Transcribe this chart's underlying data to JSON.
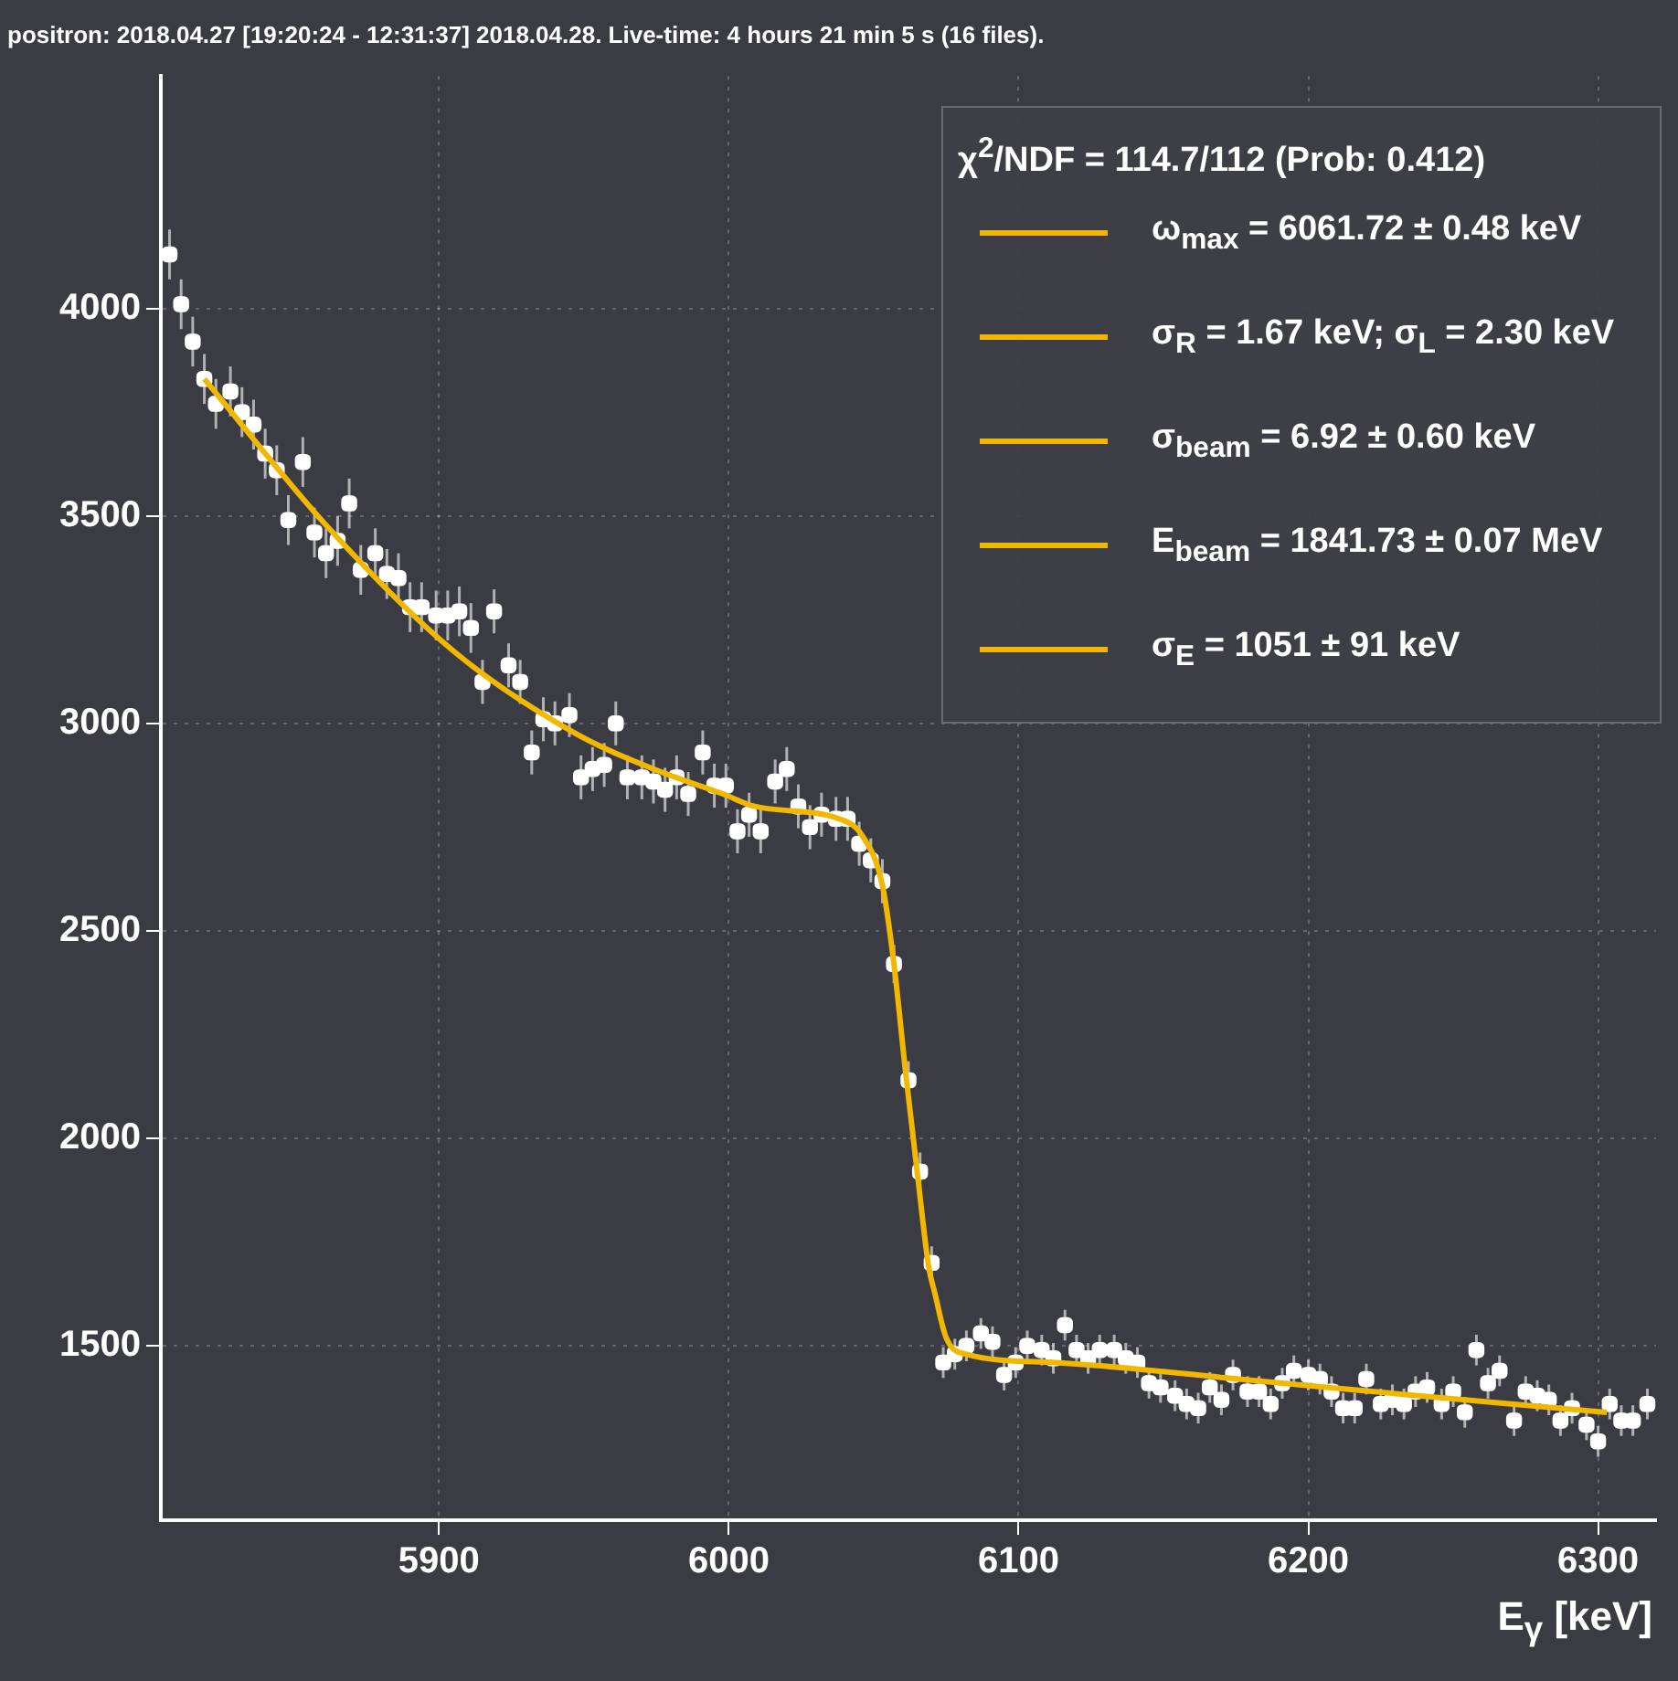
{
  "chart_data": {
    "type": "scatter",
    "title": "positron: 2018.04.27 [19:20:24 - 12:31:37] 2018.04.28. Live-time: 4 hours 21 min 5 s (16 files).",
    "xlabel": "E$_{γ}$ [keV]",
    "legend_title": "χ$^{2}$/NDF = 114.7/112  (Prob: 0.412)",
    "annotations": [
      "ω$_{max}$ =  6061.72 ± 0.48 keV",
      "σ$_{R}$ =  1.67 keV;  σ$_{L}$ =  2.30 keV",
      "σ$_{beam}$ =   6.92 ± 0.60 keV",
      "E$_{beam}$ =  1841.73 ± 0.07 MeV",
      "σ$_{E}$ = 1051 ±  91 keV"
    ],
    "xlim": [
      5804,
      6320
    ],
    "xticks": [
      5900,
      6000,
      6100,
      6200,
      6300
    ],
    "ylim": [
      1080,
      4560
    ],
    "yticks": [
      1500,
      2000,
      2500,
      3000,
      3500,
      4000
    ],
    "grid": true,
    "marker": "square",
    "series": [
      {
        "type": "scatter",
        "color": "#ffffff",
        "x": [
          5807,
          5811,
          5815,
          5819,
          5823,
          5828,
          5832,
          5836,
          5840,
          5844,
          5848,
          5853,
          5857,
          5861,
          5865,
          5869,
          5873,
          5878,
          5882,
          5886,
          5890,
          5894,
          5899,
          5903,
          5907,
          5911,
          5915,
          5919,
          5924,
          5928,
          5932,
          5936,
          5940,
          5945,
          5949,
          5953,
          5957,
          5961,
          5965,
          5970,
          5974,
          5978,
          5982,
          5986,
          5991,
          5995,
          5999,
          6003,
          6007,
          6011,
          6016,
          6020,
          6024,
          6028,
          6032,
          6037,
          6041,
          6045,
          6049,
          6053,
          6057,
          6062,
          6066,
          6070,
          6074,
          6078,
          6082,
          6087,
          6091,
          6095,
          6099,
          6103,
          6108,
          6112,
          6116,
          6120,
          6124,
          6128,
          6133,
          6137,
          6141,
          6145,
          6149,
          6154,
          6158,
          6162,
          6166,
          6170,
          6174,
          6179,
          6183,
          6187,
          6191,
          6195,
          6200,
          6204,
          6208,
          6212,
          6216,
          6220,
          6225,
          6229,
          6233,
          6237,
          6241,
          6246,
          6250,
          6254,
          6258,
          6262,
          6266,
          6271,
          6275,
          6279,
          6283,
          6287,
          6291,
          6296,
          6300,
          6304,
          6308,
          6312,
          6317
        ],
        "values": [
          4130,
          4010,
          3920,
          3830,
          3770,
          3800,
          3750,
          3720,
          3650,
          3610,
          3490,
          3630,
          3460,
          3410,
          3440,
          3530,
          3370,
          3410,
          3360,
          3350,
          3280,
          3280,
          3260,
          3260,
          3270,
          3230,
          3100,
          3270,
          3140,
          3100,
          2930,
          3010,
          3000,
          3020,
          2870,
          2890,
          2900,
          3000,
          2870,
          2870,
          2860,
          2840,
          2870,
          2830,
          2930,
          2850,
          2850,
          2740,
          2780,
          2740,
          2860,
          2890,
          2800,
          2750,
          2780,
          2770,
          2770,
          2710,
          2670,
          2620,
          2420,
          2140,
          1920,
          1700,
          1460,
          1480,
          1500,
          1530,
          1510,
          1430,
          1460,
          1500,
          1490,
          1470,
          1550,
          1490,
          1470,
          1490,
          1490,
          1470,
          1460,
          1410,
          1400,
          1380,
          1360,
          1350,
          1400,
          1370,
          1430,
          1390,
          1390,
          1360,
          1410,
          1440,
          1430,
          1420,
          1390,
          1350,
          1350,
          1420,
          1360,
          1370,
          1360,
          1390,
          1400,
          1360,
          1390,
          1340,
          1490,
          1410,
          1440,
          1320,
          1390,
          1380,
          1370,
          1320,
          1350,
          1310,
          1270,
          1360,
          1320,
          1320,
          1360
        ],
        "errors": [
          60,
          60,
          60,
          60,
          60,
          60,
          60,
          60,
          60,
          60,
          60,
          60,
          60,
          60,
          60,
          60,
          60,
          60,
          60,
          60,
          60,
          60,
          60,
          60,
          60,
          60,
          53,
          53,
          53,
          53,
          53,
          53,
          53,
          53,
          53,
          53,
          53,
          53,
          53,
          53,
          53,
          53,
          53,
          53,
          53,
          53,
          53,
          53,
          53,
          53,
          53,
          53,
          53,
          53,
          53,
          53,
          53,
          53,
          53,
          53,
          46,
          46,
          46,
          40,
          37,
          37,
          37,
          37,
          37,
          37,
          37,
          37,
          37,
          37,
          37,
          37,
          37,
          37,
          37,
          37,
          37,
          37,
          37,
          37,
          37,
          37,
          37,
          37,
          37,
          37,
          37,
          37,
          37,
          37,
          37,
          37,
          37,
          37,
          37,
          37,
          37,
          37,
          37,
          37,
          37,
          37,
          37,
          37,
          37,
          37,
          37,
          37,
          37,
          37,
          37,
          37,
          37,
          37,
          37,
          37,
          37,
          37,
          37
        ]
      },
      {
        "type": "line",
        "color": "#f2b800",
        "marker": "none",
        "x": [
          5819,
          5862,
          5904,
          5946,
          5974,
          5998,
          6009,
          6038,
          6046,
          6053,
          6057,
          6061,
          6065,
          6069,
          6071,
          6075,
          6082,
          6113,
          6176,
          6238,
          6303
        ],
        "values": [
          3830,
          3470,
          3180,
          2980,
          2890,
          2830,
          2800,
          2770,
          2730,
          2610,
          2420,
          2160,
          1920,
          1690,
          1630,
          1520,
          1480,
          1460,
          1420,
          1380,
          1340
        ]
      }
    ]
  }
}
